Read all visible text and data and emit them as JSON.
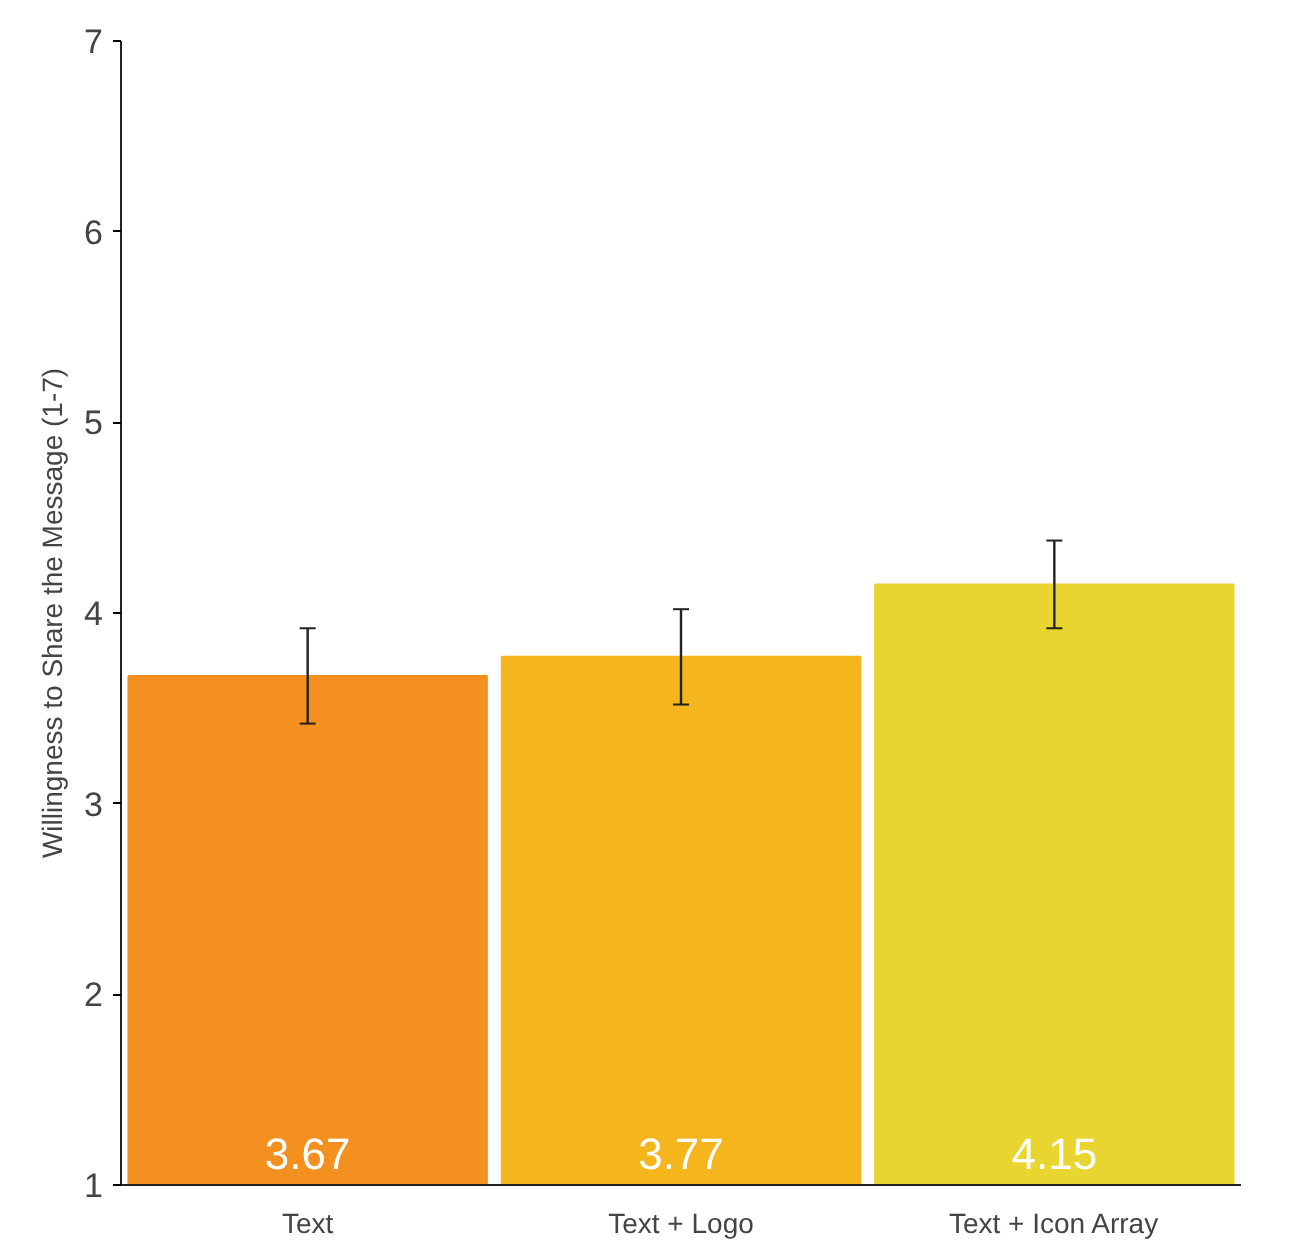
{
  "chart_data": {
    "type": "bar",
    "ylabel": "Willingness to Share the Message (1-7)",
    "categories": [
      "Text",
      "Text + Logo",
      "Text + Icon Array"
    ],
    "values": [
      3.67,
      3.77,
      4.15
    ],
    "colors": [
      "#f39020",
      "#f5b51c",
      "#e9d530"
    ],
    "errors": [
      0.25,
      0.25,
      0.23
    ],
    "ylim": [
      1,
      7
    ],
    "yticks": [
      1,
      2,
      3,
      4,
      5,
      6,
      7
    ],
    "data_labels": true,
    "grid": false
  }
}
